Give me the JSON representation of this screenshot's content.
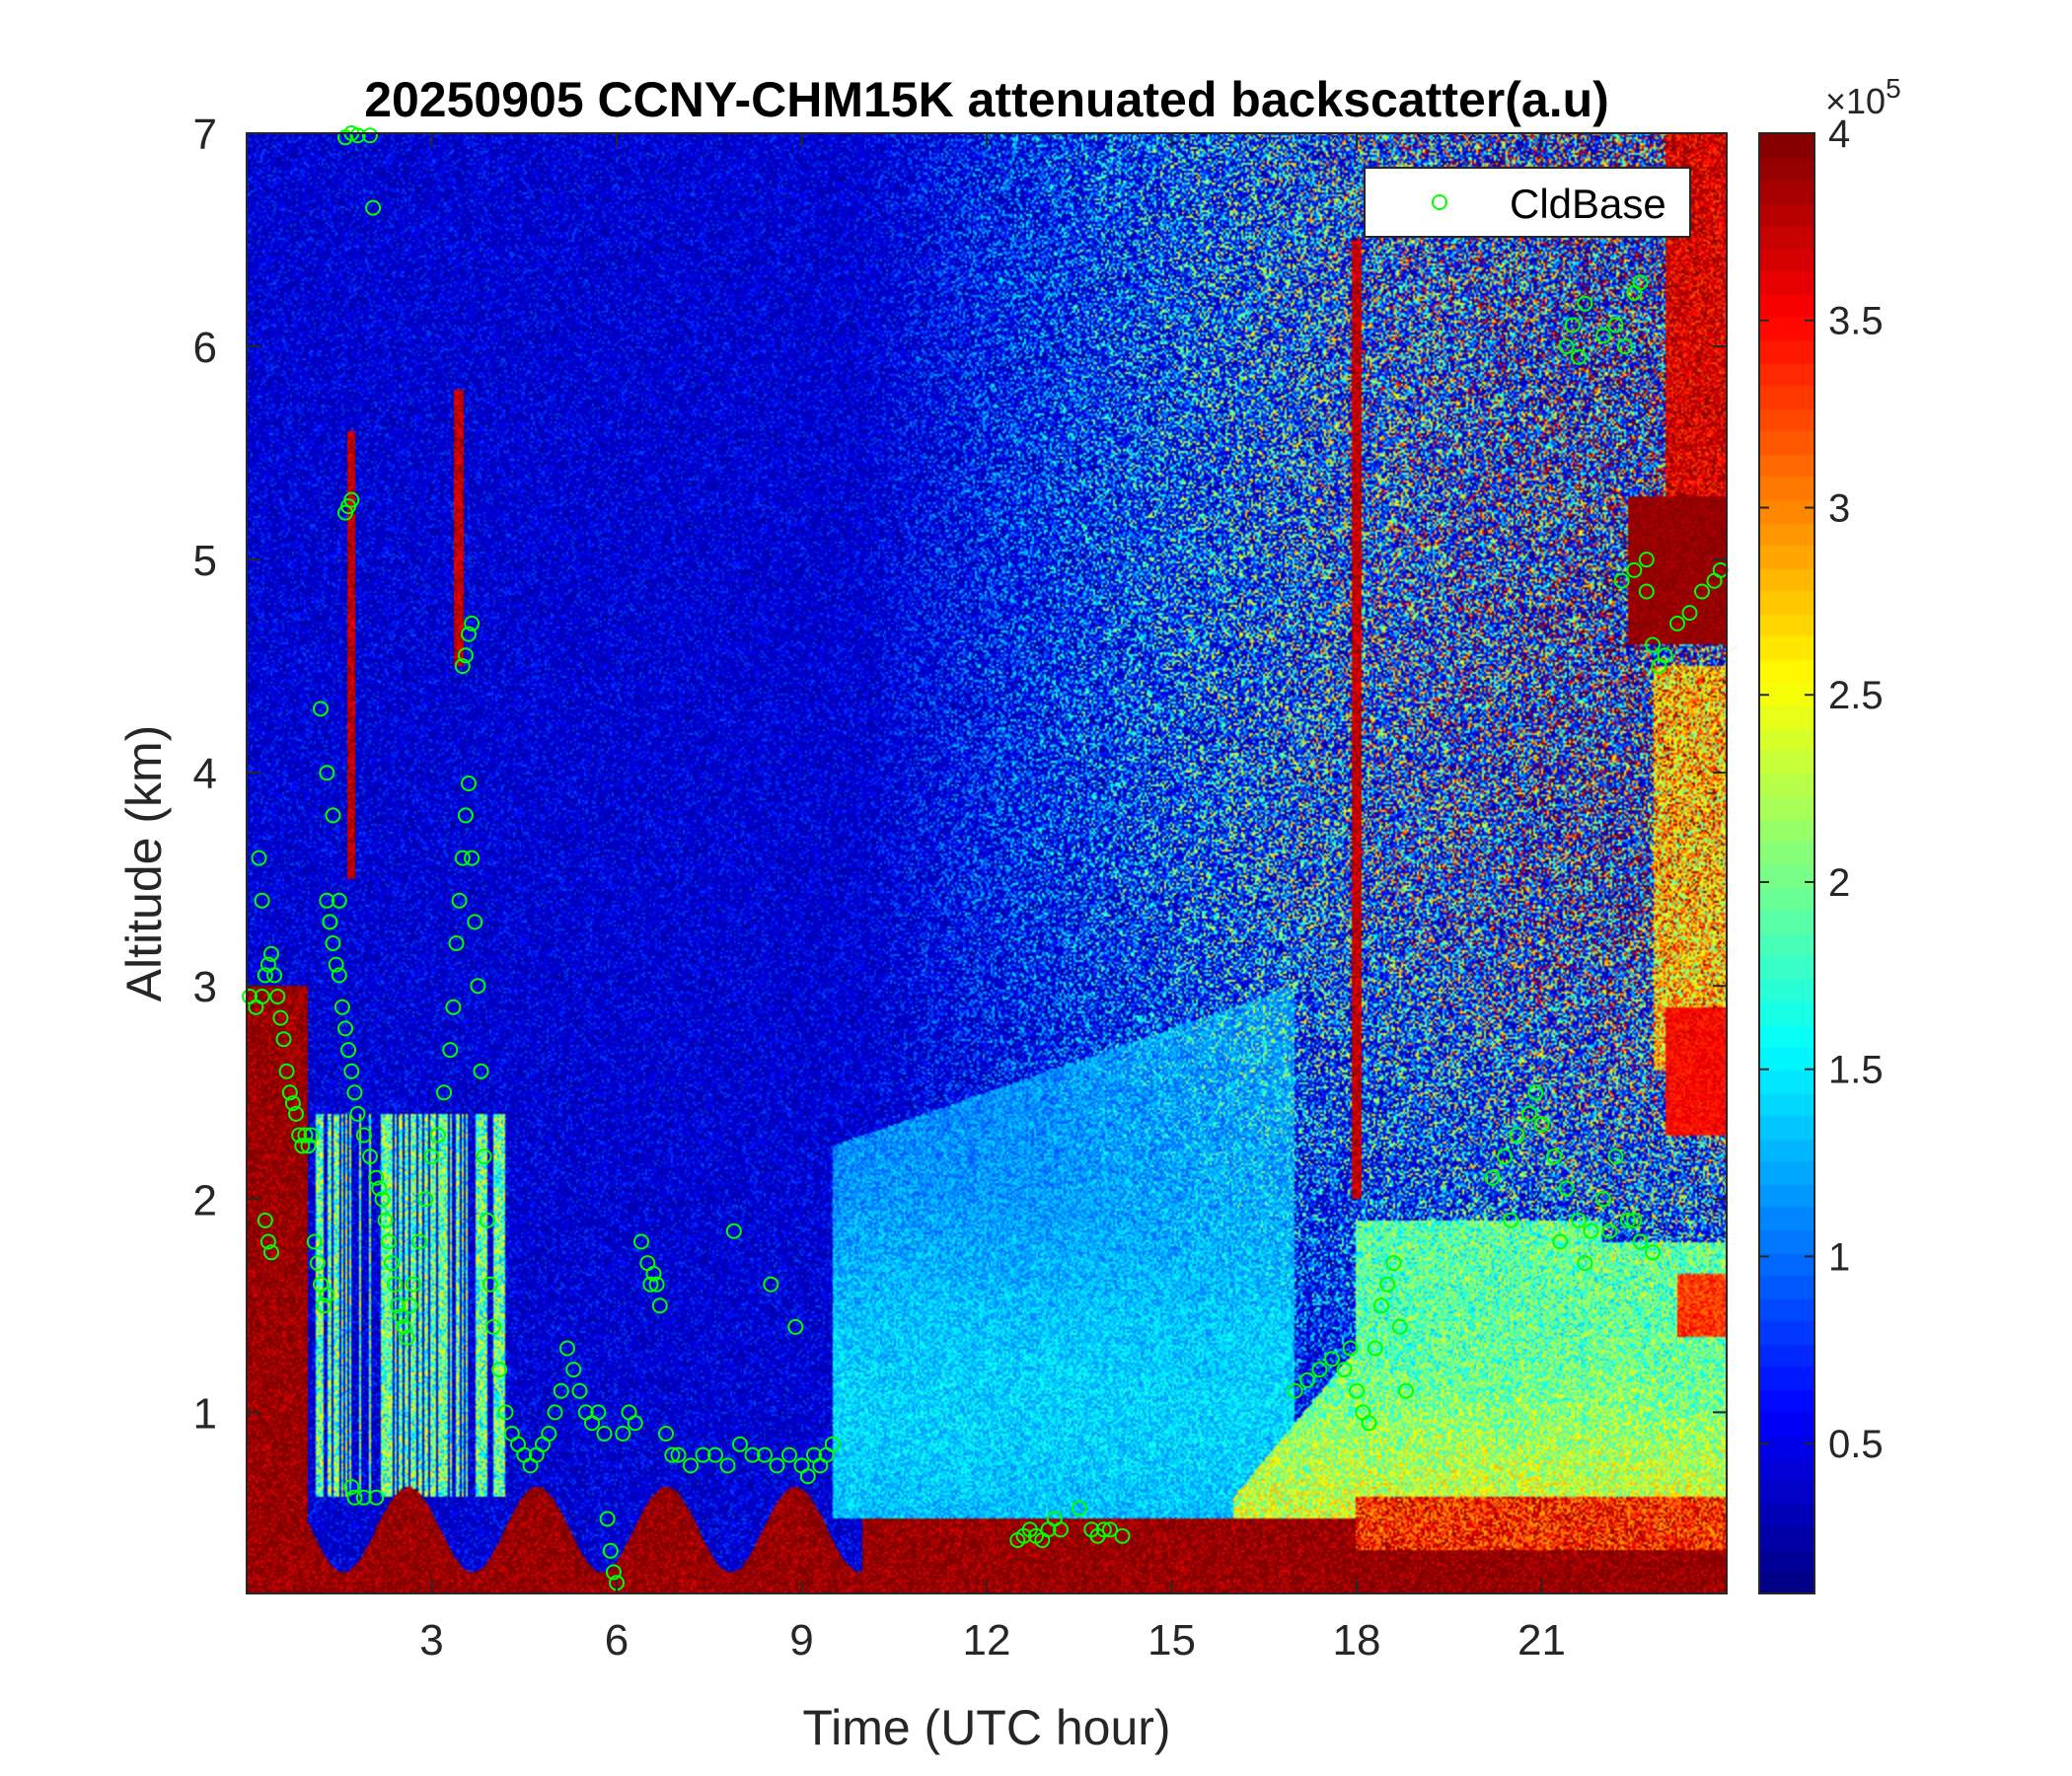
{
  "chart_data": {
    "type": "heatmap",
    "title": "20250905 CCNY-CHM15K attenuated backscatter(a.u)",
    "xlabel": "Time (UTC hour)",
    "ylabel": "Altitude (km)",
    "xlim": [
      0,
      24
    ],
    "ylim": [
      0.15,
      7
    ],
    "xticks": [
      3,
      6,
      9,
      12,
      15,
      18,
      21
    ],
    "xtick_labels": [
      "3",
      "6",
      "9",
      "12",
      "15",
      "18",
      "21"
    ],
    "yticks": [
      1,
      2,
      3,
      4,
      5,
      6,
      7
    ],
    "ytick_labels": [
      "1",
      "2",
      "3",
      "4",
      "5",
      "6",
      "7"
    ],
    "colormap": "jet",
    "clim": [
      0.1,
      4.0
    ],
    "colorbar_exponent_label": "×10",
    "colorbar_exponent_power": "5",
    "colorbar_ticks": [
      0.5,
      1,
      1.5,
      2,
      2.5,
      3,
      3.5,
      4
    ],
    "colorbar_tick_labels": [
      "0.5",
      "1",
      "1.5",
      "2",
      "2.5",
      "3",
      "3.5",
      "4"
    ],
    "legend": {
      "placement": "top-right",
      "entries": [
        {
          "name": "CldBase",
          "marker": "circle",
          "color": "#00ff00"
        }
      ]
    },
    "grid": false,
    "series": [
      {
        "name": "CldBase",
        "type": "scatter",
        "color": "#00ff00",
        "x": [
          0.05,
          0.15,
          0.25,
          0.3,
          0.35,
          0.4,
          0.45,
          0.5,
          0.55,
          0.6,
          0.65,
          0.7,
          0.75,
          0.8,
          0.85,
          0.9,
          0.95,
          1.0,
          1.05,
          1.1,
          1.15,
          1.2,
          1.25,
          1.3,
          0.2,
          0.25,
          0.3,
          0.35,
          0.4,
          1.3,
          1.35,
          1.4,
          1.45,
          1.5,
          1.55,
          1.6,
          1.65,
          1.7,
          1.75,
          1.8,
          1.9,
          2.0,
          2.1,
          2.15,
          2.2,
          2.25,
          2.3,
          2.35,
          2.4,
          2.45,
          2.5,
          2.55,
          2.6,
          2.65,
          2.7,
          2.8,
          2.9,
          3.0,
          3.1,
          3.2,
          3.3,
          3.35,
          3.4,
          3.45,
          3.5,
          3.55,
          3.6,
          3.65,
          3.7,
          3.75,
          3.8,
          3.85,
          3.9,
          3.95,
          4.0,
          4.1,
          4.2,
          4.3,
          4.4,
          4.5,
          4.6,
          4.7,
          4.8,
          4.9,
          5.0,
          5.1,
          5.2,
          5.3,
          5.4,
          5.5,
          5.6,
          5.7,
          5.8,
          5.85,
          5.9,
          5.95,
          6.0,
          6.1,
          6.2,
          6.3,
          6.4,
          6.5,
          6.55,
          6.6,
          6.65,
          6.7,
          6.8,
          6.9,
          7.0,
          7.2,
          7.4,
          7.6,
          7.8,
          8.0,
          8.2,
          8.4,
          8.6,
          8.8,
          9.0,
          9.1,
          9.2,
          9.3,
          9.4,
          9.5,
          8.5,
          8.9,
          7.9,
          1.2,
          1.3,
          1.4,
          1.5,
          1.35,
          1.7,
          1.75,
          1.9,
          2.1,
          3.5,
          3.6,
          3.55,
          3.65,
          1.6,
          1.65,
          1.7,
          12.5,
          12.6,
          12.7,
          12.8,
          12.9,
          13.0,
          13.1,
          13.2,
          13.5,
          13.7,
          13.8,
          13.9,
          14.0,
          14.2,
          17.0,
          17.2,
          17.4,
          17.6,
          17.8,
          17.9,
          18.0,
          18.1,
          18.2,
          18.3,
          18.4,
          18.5,
          18.6,
          18.7,
          18.8,
          20.2,
          20.4,
          20.6,
          20.8,
          21.0,
          21.2,
          21.4,
          21.6,
          21.8,
          22.0,
          22.2,
          22.4,
          22.6,
          22.8,
          20.5,
          20.9,
          21.3,
          21.7,
          22.1,
          22.5,
          21.4,
          21.6,
          21.5,
          21.7,
          22.0,
          22.2,
          22.35,
          22.5,
          22.6,
          22.7,
          22.8,
          22.9,
          23.0,
          23.2,
          23.4,
          23.6,
          23.8,
          23.9,
          22.3,
          22.5,
          22.7
        ],
        "y": [
          2.95,
          2.9,
          2.95,
          3.05,
          3.1,
          3.15,
          3.05,
          2.95,
          2.85,
          2.75,
          2.6,
          2.5,
          2.45,
          2.4,
          2.3,
          2.25,
          2.3,
          2.25,
          2.3,
          1.8,
          1.7,
          1.6,
          1.5,
          1.55,
          3.6,
          3.4,
          1.9,
          1.8,
          1.75,
          3.4,
          3.3,
          3.2,
          3.1,
          3.05,
          2.9,
          2.8,
          2.7,
          2.6,
          2.5,
          2.4,
          2.3,
          2.2,
          2.1,
          2.05,
          2.0,
          1.9,
          1.8,
          1.7,
          1.6,
          1.5,
          1.45,
          1.4,
          1.35,
          1.5,
          1.6,
          1.8,
          2.0,
          2.2,
          2.3,
          2.5,
          2.7,
          2.9,
          3.2,
          3.4,
          3.6,
          3.8,
          3.95,
          3.6,
          3.3,
          3.0,
          2.6,
          2.2,
          1.9,
          1.6,
          1.4,
          1.2,
          1.0,
          0.9,
          0.85,
          0.8,
          0.75,
          0.8,
          0.85,
          0.9,
          1.0,
          1.1,
          1.3,
          1.2,
          1.1,
          1.0,
          0.95,
          1.0,
          0.9,
          0.5,
          0.35,
          0.25,
          0.2,
          0.9,
          1.0,
          0.95,
          1.8,
          1.7,
          1.6,
          1.65,
          1.6,
          1.5,
          0.9,
          0.8,
          0.8,
          0.75,
          0.8,
          0.8,
          0.75,
          0.85,
          0.8,
          0.8,
          0.75,
          0.8,
          0.75,
          0.7,
          0.8,
          0.75,
          0.8,
          0.85,
          1.6,
          1.4,
          1.85,
          4.3,
          4.0,
          3.8,
          3.4,
          3.3,
          0.65,
          0.6,
          0.6,
          0.6,
          4.5,
          4.65,
          4.55,
          4.7,
          5.22,
          5.25,
          5.28,
          0.4,
          0.42,
          0.45,
          0.42,
          0.4,
          0.45,
          0.5,
          0.45,
          0.55,
          0.45,
          0.42,
          0.45,
          0.45,
          0.42,
          1.1,
          1.15,
          1.2,
          1.25,
          1.2,
          1.3,
          1.1,
          1.0,
          0.95,
          1.3,
          1.5,
          1.6,
          1.7,
          1.4,
          1.1,
          2.1,
          2.2,
          2.3,
          2.4,
          2.35,
          2.2,
          2.05,
          1.9,
          1.85,
          2.0,
          2.2,
          1.9,
          1.8,
          1.75,
          1.9,
          2.5,
          1.8,
          1.7,
          1.85,
          1.9,
          6.0,
          5.95,
          6.1,
          6.2,
          6.05,
          6.1,
          6.0,
          6.25,
          6.3,
          4.85,
          4.6,
          4.5,
          4.55,
          4.7,
          4.75,
          4.85,
          4.9,
          4.95,
          4.9,
          4.95,
          5.0
        ],
        "extra_x": [
          1.6,
          1.7,
          1.8,
          2.0,
          2.05
        ],
        "extra_y": [
          6.98,
          7.0,
          6.99,
          6.99,
          6.65
        ]
      }
    ]
  }
}
